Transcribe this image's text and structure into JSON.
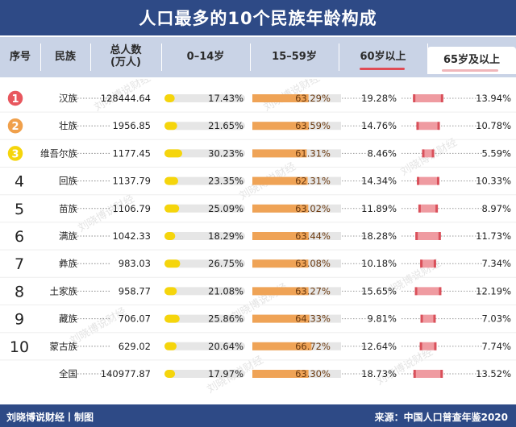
{
  "title": "人口最多的10个民族年龄构成",
  "header": {
    "rank": "序号",
    "ethnicity": "民族",
    "total_line1": "总人数",
    "total_line2": "(万人)",
    "age_0_14": "0–14岁",
    "age_15_59": "15–59岁",
    "age_60_plus": "60岁以上",
    "age_65_plus": "65岁及以上"
  },
  "colors": {
    "header_bg": "#2e4a86",
    "col_header_bg": "#c9d3e6",
    "rank_1": "#e8575e",
    "rank_2": "#f0a04b",
    "rank_3": "#f5d50c",
    "bar_0_14": "#f5d50c",
    "bar_15_59": "#efa356",
    "bar_old": "#ef9ba1",
    "bar_track": "#e6e6e6"
  },
  "watermark": "刘晓博说财经",
  "chart_data": {
    "type": "table",
    "columns": [
      "序号",
      "民族",
      "总人数(万人)",
      "0–14岁",
      "15–59岁",
      "60岁以上",
      "65岁及以上"
    ],
    "rows": [
      {
        "rank": "1",
        "name": "汉族",
        "total": "128444.64",
        "a0_14": 17.43,
        "a0_14_label": "17.43%",
        "a15_59": 63.29,
        "a15_59_label": "63.29%",
        "a60": 19.28,
        "a60_label": "19.28%",
        "a65": 13.94,
        "a65_label": "13.94%"
      },
      {
        "rank": "2",
        "name": "壮族",
        "total": "1956.85",
        "a0_14": 21.65,
        "a0_14_label": "21.65%",
        "a15_59": 63.59,
        "a15_59_label": "63.59%",
        "a60": 14.76,
        "a60_label": "14.76%",
        "a65": 10.78,
        "a65_label": "10.78%"
      },
      {
        "rank": "3",
        "name": "维吾尔族",
        "total": "1177.45",
        "a0_14": 30.23,
        "a0_14_label": "30.23%",
        "a15_59": 61.31,
        "a15_59_label": "61.31%",
        "a60": 8.46,
        "a60_label": "8.46%",
        "a65": 5.59,
        "a65_label": "5.59%"
      },
      {
        "rank": "4",
        "name": "回族",
        "total": "1137.79",
        "a0_14": 23.35,
        "a0_14_label": "23.35%",
        "a15_59": 62.31,
        "a15_59_label": "62.31%",
        "a60": 14.34,
        "a60_label": "14.34%",
        "a65": 10.33,
        "a65_label": "10.33%"
      },
      {
        "rank": "5",
        "name": "苗族",
        "total": "1106.79",
        "a0_14": 25.09,
        "a0_14_label": "25.09%",
        "a15_59": 63.02,
        "a15_59_label": "63.02%",
        "a60": 11.89,
        "a60_label": "11.89%",
        "a65": 8.97,
        "a65_label": "8.97%"
      },
      {
        "rank": "6",
        "name": "满族",
        "total": "1042.33",
        "a0_14": 18.29,
        "a0_14_label": "18.29%",
        "a15_59": 63.44,
        "a15_59_label": "63.44%",
        "a60": 18.28,
        "a60_label": "18.28%",
        "a65": 11.73,
        "a65_label": "11.73%"
      },
      {
        "rank": "7",
        "name": "彝族",
        "total": "983.03",
        "a0_14": 26.75,
        "a0_14_label": "26.75%",
        "a15_59": 63.08,
        "a15_59_label": "63.08%",
        "a60": 10.18,
        "a60_label": "10.18%",
        "a65": 7.34,
        "a65_label": "7.34%"
      },
      {
        "rank": "8",
        "name": "土家族",
        "total": "958.77",
        "a0_14": 21.08,
        "a0_14_label": "21.08%",
        "a15_59": 63.27,
        "a15_59_label": "63.27%",
        "a60": 15.65,
        "a60_label": "15.65%",
        "a65": 12.19,
        "a65_label": "12.19%"
      },
      {
        "rank": "9",
        "name": "藏族",
        "total": "706.07",
        "a0_14": 25.86,
        "a0_14_label": "25.86%",
        "a15_59": 64.33,
        "a15_59_label": "64.33%",
        "a60": 9.81,
        "a60_label": "9.81%",
        "a65": 7.03,
        "a65_label": "7.03%"
      },
      {
        "rank": "10",
        "name": "蒙古族",
        "total": "629.02",
        "a0_14": 20.64,
        "a0_14_label": "20.64%",
        "a15_59": 66.72,
        "a15_59_label": "66.72%",
        "a60": 12.64,
        "a60_label": "12.64%",
        "a65": 7.74,
        "a65_label": "7.74%"
      },
      {
        "rank": "",
        "name": "全国",
        "total": "140977.87",
        "a0_14": 17.97,
        "a0_14_label": "17.97%",
        "a15_59": 63.3,
        "a15_59_label": "63.30%",
        "a60": 18.73,
        "a60_label": "18.73%",
        "a65": 13.52,
        "a65_label": "13.52%"
      }
    ]
  },
  "footer": {
    "left": "刘晓博说财经丨制图",
    "right": "来源：中国人口普查年鉴2020"
  }
}
